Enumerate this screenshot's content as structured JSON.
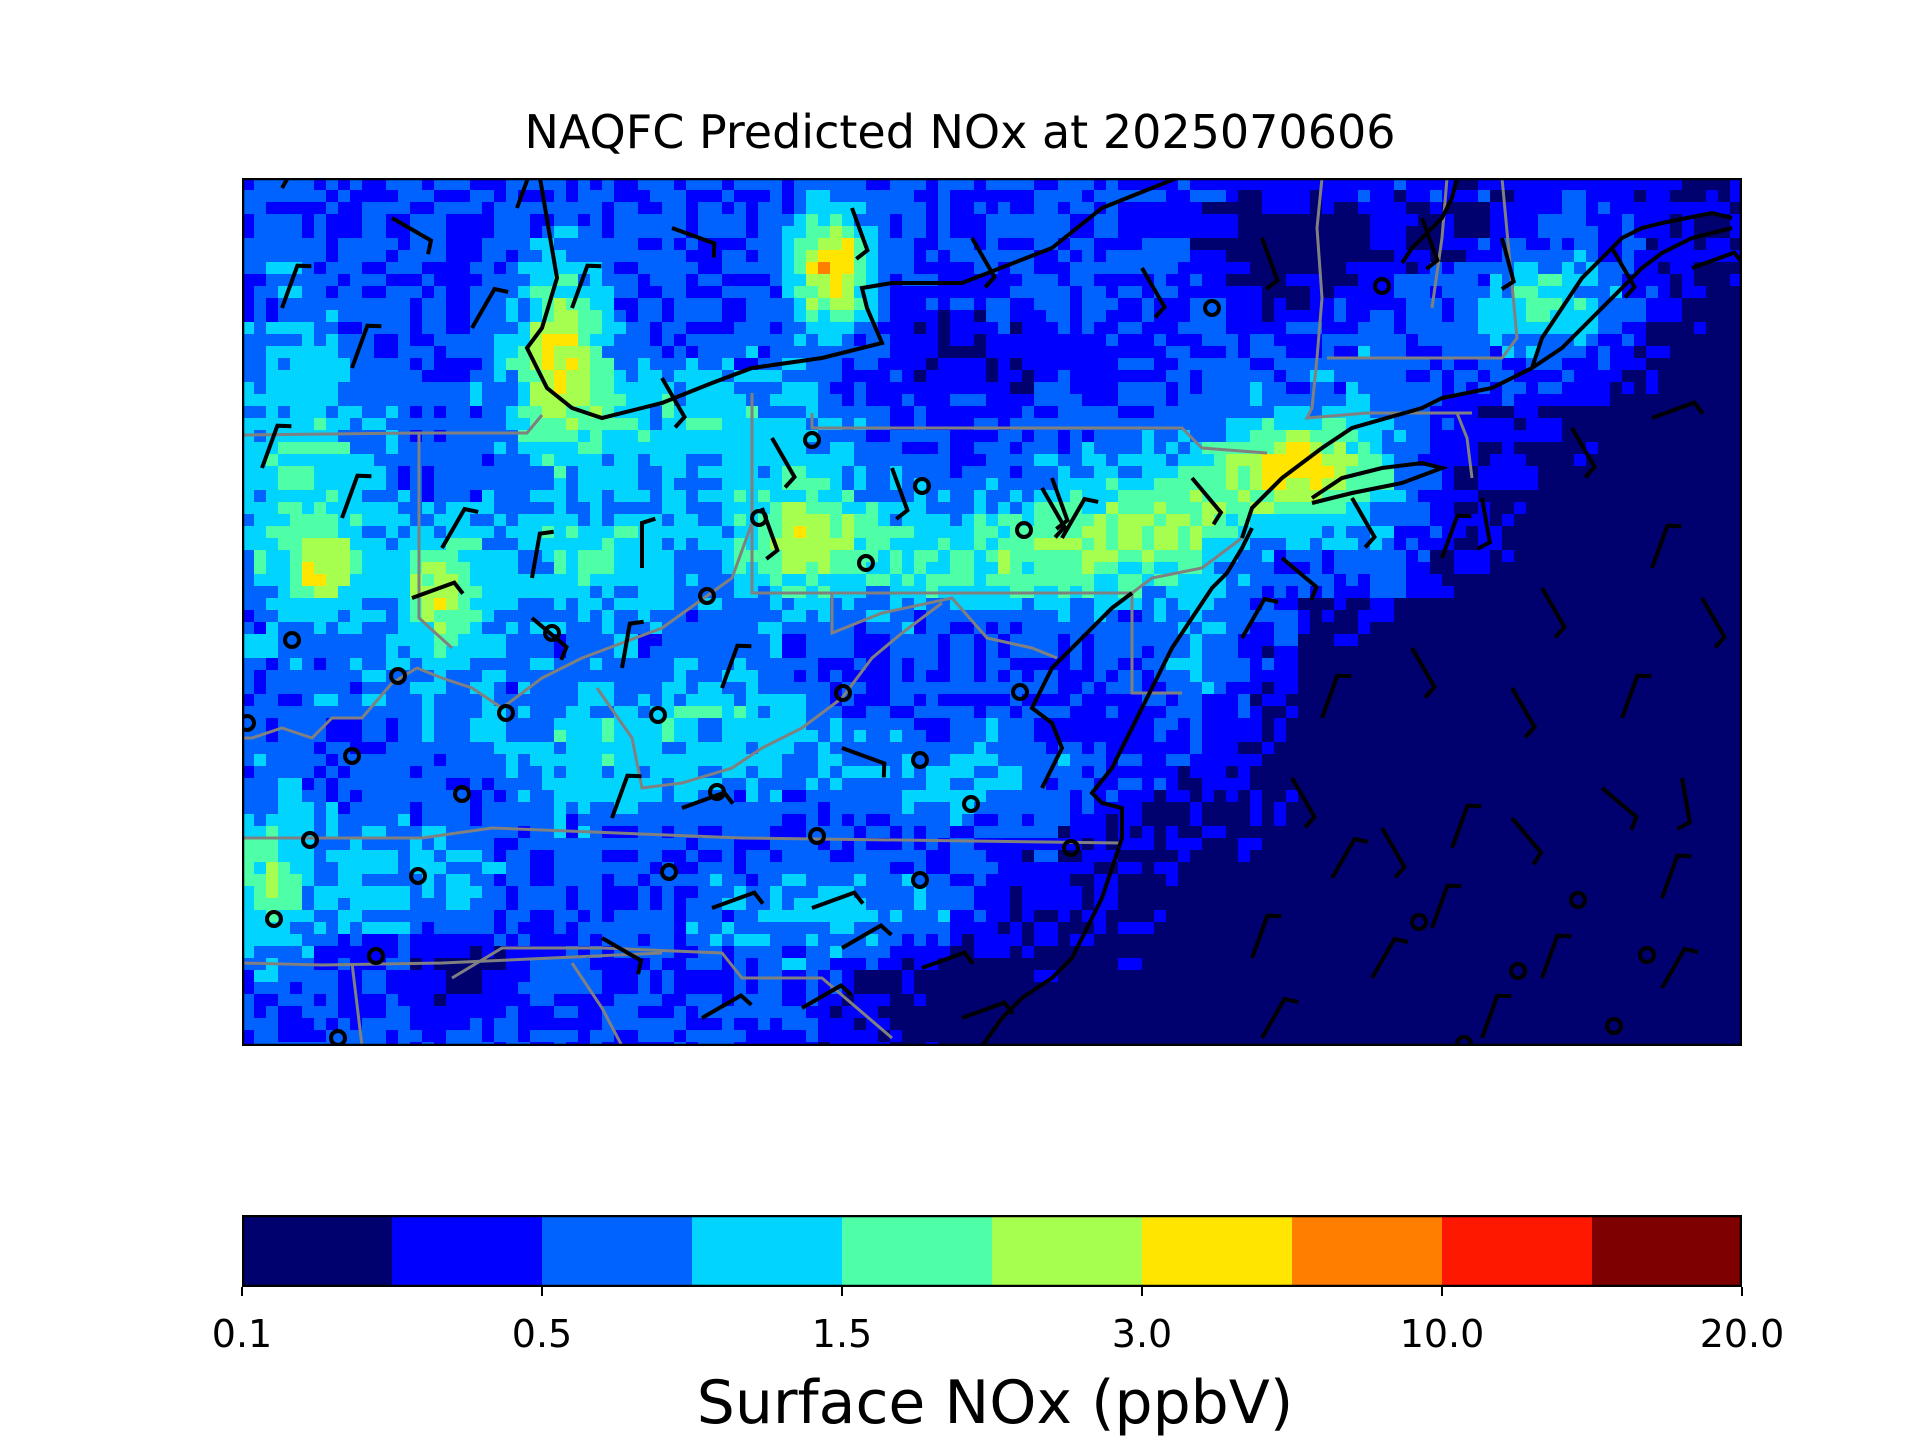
{
  "title": "NAQFC Predicted NOx at 2025070606",
  "colorbar": {
    "label": "Surface NOx (ppbV)",
    "colors": [
      "#00006e",
      "#0000ff",
      "#0063ff",
      "#00d4ff",
      "#4effa7",
      "#a6ff4e",
      "#ffe500",
      "#ff7e00",
      "#ff1800",
      "#7f0000"
    ],
    "ticks": [
      "0.1",
      "0.5",
      "1.5",
      "3.0",
      "10.0",
      "20.0"
    ]
  },
  "map": {
    "region": "Mid-Atlantic / Northeast United States",
    "overlays": [
      "state boundaries",
      "coastlines",
      "wind barbs",
      "calm-wind circles"
    ]
  }
}
